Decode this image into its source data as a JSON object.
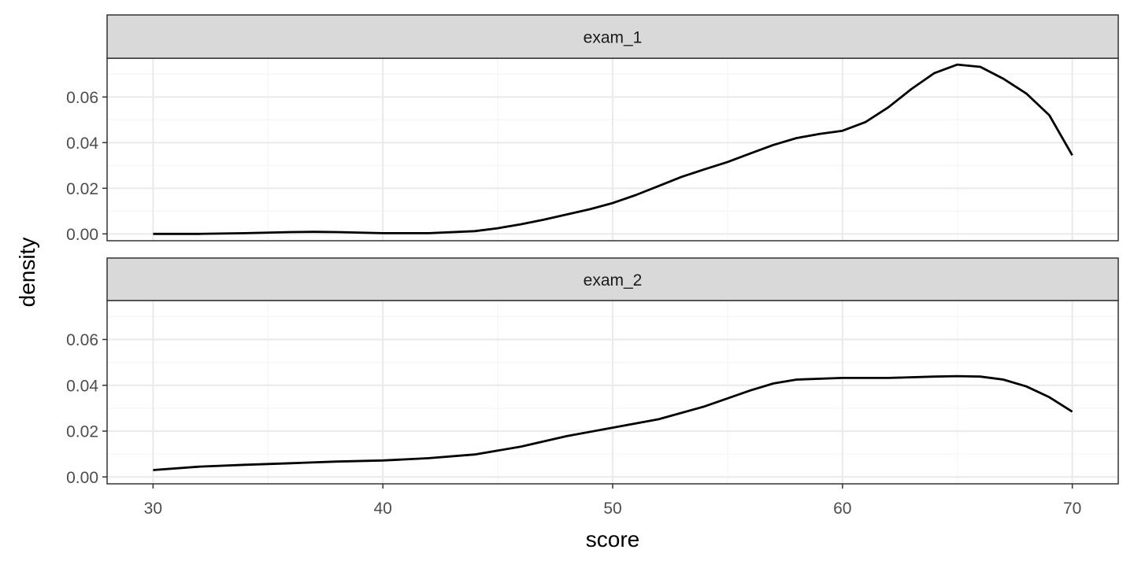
{
  "chart_data": {
    "type": "line",
    "facet_by": "exam",
    "xlabel": "score",
    "ylabel": "density",
    "xlim": [
      28,
      72
    ],
    "ylim": [
      -0.003,
      0.077
    ],
    "x_ticks": [
      30,
      40,
      50,
      60,
      70
    ],
    "x_tick_labels": [
      "30",
      "40",
      "50",
      "60",
      "70"
    ],
    "y_ticks": [
      0,
      0.02,
      0.04,
      0.06
    ],
    "y_tick_labels": [
      "0.00",
      "0.02",
      "0.04",
      "0.06"
    ],
    "grid": true,
    "theme": "bw",
    "colors": {
      "line": "#000000",
      "strip_fill": "#d9d9d9",
      "panel_border": "#333333",
      "grid_major": "#ebebeb",
      "grid_minor": "#f5f5f5",
      "tick_text": "#4d4d4d"
    },
    "panels": [
      {
        "name": "exam_1",
        "x": [
          30,
          32,
          34,
          36,
          37,
          38,
          40,
          42,
          44,
          45,
          46,
          47,
          48,
          49,
          50,
          51,
          52,
          53,
          54,
          55,
          56,
          57,
          58,
          59,
          60,
          61,
          62,
          63,
          64,
          65,
          66,
          67,
          68,
          69,
          70
        ],
        "y": [
          0.0,
          0.0,
          0.0003,
          0.0008,
          0.0009,
          0.0008,
          0.0003,
          0.0003,
          0.0012,
          0.0025,
          0.0042,
          0.0062,
          0.0085,
          0.0108,
          0.0135,
          0.017,
          0.021,
          0.025,
          0.0283,
          0.0315,
          0.0353,
          0.039,
          0.042,
          0.0438,
          0.0452,
          0.049,
          0.0555,
          0.0635,
          0.0705,
          0.0742,
          0.0732,
          0.068,
          0.0615,
          0.052,
          0.0345
        ]
      },
      {
        "name": "exam_2",
        "x": [
          30,
          32,
          34,
          36,
          38,
          40,
          42,
          44,
          46,
          48,
          50,
          52,
          54,
          56,
          57,
          58,
          60,
          62,
          64,
          65,
          66,
          67,
          68,
          69,
          70
        ],
        "y": [
          0.003,
          0.0045,
          0.0053,
          0.006,
          0.0067,
          0.0072,
          0.0082,
          0.0098,
          0.0132,
          0.0178,
          0.0215,
          0.0252,
          0.0308,
          0.0378,
          0.0408,
          0.0425,
          0.0432,
          0.0432,
          0.0438,
          0.044,
          0.0438,
          0.0425,
          0.0395,
          0.0348,
          0.0285
        ]
      }
    ]
  }
}
